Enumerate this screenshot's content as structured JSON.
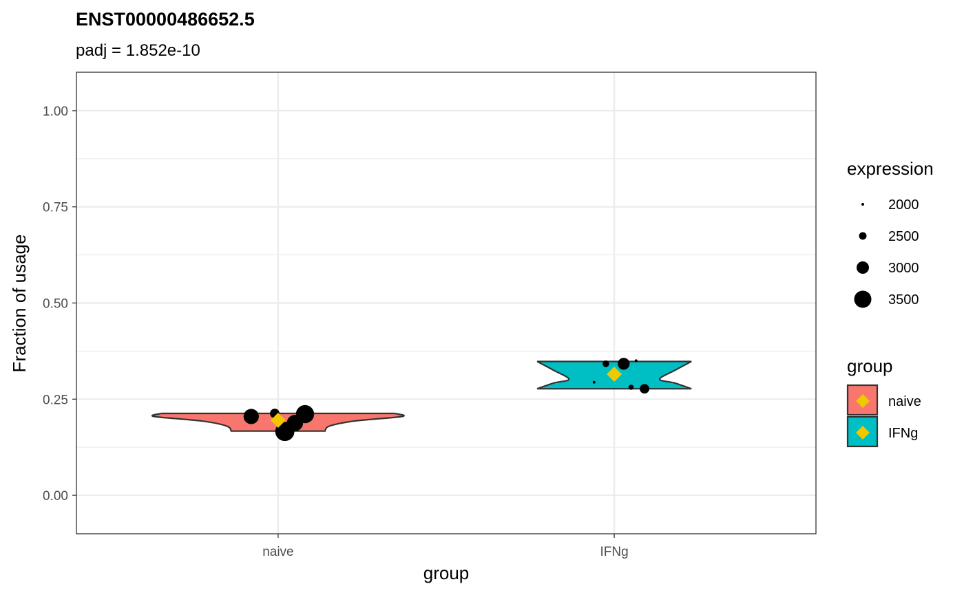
{
  "chart_data": {
    "type": "violin",
    "title": "ENST00000486652.5",
    "subtitle": "padj = 1.852e-10",
    "xlabel": "group",
    "ylabel": "Fraction of usage",
    "categories": [
      "naive",
      "IFNg"
    ],
    "ylim": [
      -0.1,
      1.1
    ],
    "yticks": [
      0.0,
      0.25,
      0.5,
      0.75,
      1.0
    ],
    "ytick_labels": [
      "0.00",
      "0.25",
      "0.50",
      "0.75",
      "1.00"
    ],
    "grid": true,
    "legend_position": "right",
    "colors": {
      "naive": "#F8766D",
      "IFNg": "#00BFC4",
      "mean_marker": "#F0C800",
      "points": "#000000",
      "violin_outline": "#333333"
    },
    "violins": [
      {
        "group": "naive",
        "profile": [
          [
            0.167,
            0.31
          ],
          [
            0.18,
            0.34
          ],
          [
            0.193,
            0.5
          ],
          [
            0.205,
            0.82
          ],
          [
            0.213,
            0.77
          ]
        ]
      },
      {
        "group": "IFNg",
        "profile": [
          [
            0.277,
            0.51
          ],
          [
            0.292,
            0.4
          ],
          [
            0.302,
            0.3
          ],
          [
            0.325,
            0.4
          ],
          [
            0.348,
            0.51
          ]
        ]
      }
    ],
    "points": [
      {
        "group": "naive",
        "jitter": -0.08,
        "y": 0.205,
        "expression": 3300
      },
      {
        "group": "naive",
        "jitter": -0.01,
        "y": 0.213,
        "expression": 2700
      },
      {
        "group": "naive",
        "jitter": 0.05,
        "y": 0.188,
        "expression": 3400
      },
      {
        "group": "naive",
        "jitter": 0.02,
        "y": 0.166,
        "expression": 3700
      },
      {
        "group": "naive",
        "jitter": 0.08,
        "y": 0.211,
        "expression": 3600
      },
      {
        "group": "IFNg",
        "jitter": -0.025,
        "y": 0.342,
        "expression": 2400
      },
      {
        "group": "IFNg",
        "jitter": 0.028,
        "y": 0.342,
        "expression": 2950
      },
      {
        "group": "IFNg",
        "jitter": 0.065,
        "y": 0.35,
        "expression": 2000
      },
      {
        "group": "IFNg",
        "jitter": -0.06,
        "y": 0.294,
        "expression": 1800
      },
      {
        "group": "IFNg",
        "jitter": 0.05,
        "y": 0.281,
        "expression": 2250
      },
      {
        "group": "IFNg",
        "jitter": 0.09,
        "y": 0.277,
        "expression": 2700
      }
    ],
    "means": [
      {
        "group": "naive",
        "y": 0.195
      },
      {
        "group": "IFNg",
        "y": 0.315
      }
    ],
    "legend": {
      "size": {
        "title": "expression",
        "entries": [
          {
            "label": "2000",
            "value": 2000
          },
          {
            "label": "2500",
            "value": 2500
          },
          {
            "label": "3000",
            "value": 3000
          },
          {
            "label": "3500",
            "value": 3500
          }
        ]
      },
      "fill": {
        "title": "group",
        "entries": [
          {
            "label": "naive",
            "color": "#F8766D"
          },
          {
            "label": "IFNg",
            "color": "#00BFC4"
          }
        ]
      }
    }
  }
}
